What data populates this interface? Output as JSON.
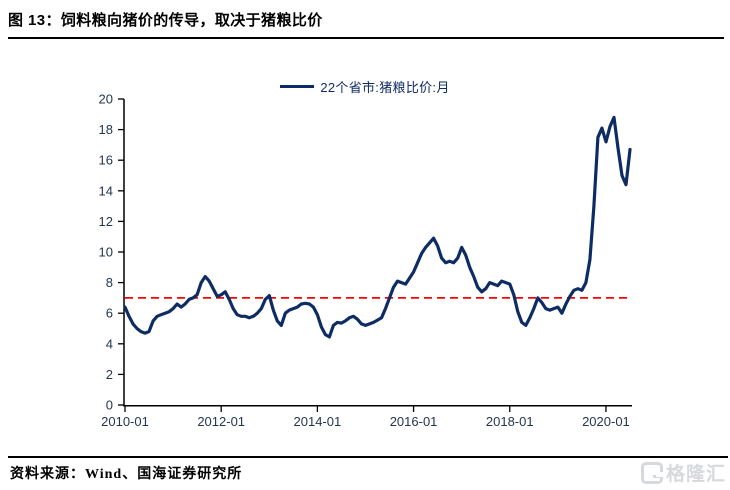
{
  "header": {
    "title": "图 13：饲料粮向猪价的传导，取决于猪粮比价"
  },
  "legend": {
    "label": "22个省市:猪粮比价:月"
  },
  "chart_data": {
    "type": "line",
    "title": "",
    "series_name": "22个省市:猪粮比价:月",
    "x_start": "2010-01",
    "x_end": "2020-07",
    "x_freq": "monthly",
    "x_ticks": [
      "2010-01",
      "2012-01",
      "2014-01",
      "2016-01",
      "2018-01",
      "2020-01"
    ],
    "y_ticks": [
      0,
      2,
      4,
      6,
      8,
      10,
      12,
      14,
      16,
      18,
      20
    ],
    "ylim": [
      0,
      20
    ],
    "grid": false,
    "legend_position": "top-center",
    "line_color": "#0e2c64",
    "axis_line_color": "#000000",
    "tick_label_color": "#24364f",
    "reference_line": {
      "value": 7,
      "color": "#ff0000",
      "style": "dashed"
    },
    "values": [
      6.4,
      5.8,
      5.3,
      5.0,
      4.8,
      4.7,
      4.8,
      5.5,
      5.8,
      5.9,
      6.0,
      6.1,
      6.3,
      6.6,
      6.4,
      6.6,
      6.9,
      7.0,
      7.2,
      8.0,
      8.4,
      8.1,
      7.6,
      7.1,
      7.2,
      7.4,
      6.9,
      6.3,
      5.9,
      5.8,
      5.8,
      5.7,
      5.8,
      6.0,
      6.3,
      6.9,
      7.15,
      6.2,
      5.5,
      5.2,
      6.0,
      6.2,
      6.3,
      6.4,
      6.6,
      6.65,
      6.6,
      6.4,
      5.9,
      5.1,
      4.6,
      4.45,
      5.2,
      5.4,
      5.35,
      5.5,
      5.7,
      5.8,
      5.6,
      5.3,
      5.2,
      5.3,
      5.4,
      5.55,
      5.7,
      6.3,
      7.0,
      7.7,
      8.1,
      8.0,
      7.9,
      8.3,
      8.7,
      9.3,
      9.9,
      10.3,
      10.6,
      10.9,
      10.4,
      9.6,
      9.3,
      9.4,
      9.3,
      9.6,
      10.3,
      9.8,
      9.0,
      8.4,
      7.7,
      7.4,
      7.6,
      8.0,
      7.9,
      7.8,
      8.1,
      8.0,
      7.9,
      7.2,
      6.1,
      5.4,
      5.2,
      5.7,
      6.3,
      7.0,
      6.7,
      6.3,
      6.2,
      6.3,
      6.4,
      6.0,
      6.6,
      7.1,
      7.5,
      7.6,
      7.5,
      8.0,
      9.5,
      13.0,
      17.5,
      18.1,
      17.2,
      18.2,
      18.8,
      16.8,
      15.0,
      14.4,
      16.7
    ]
  },
  "footer": {
    "source": "资料来源：Wind、国海证券研究所"
  },
  "watermark": {
    "text": "格隆汇"
  }
}
